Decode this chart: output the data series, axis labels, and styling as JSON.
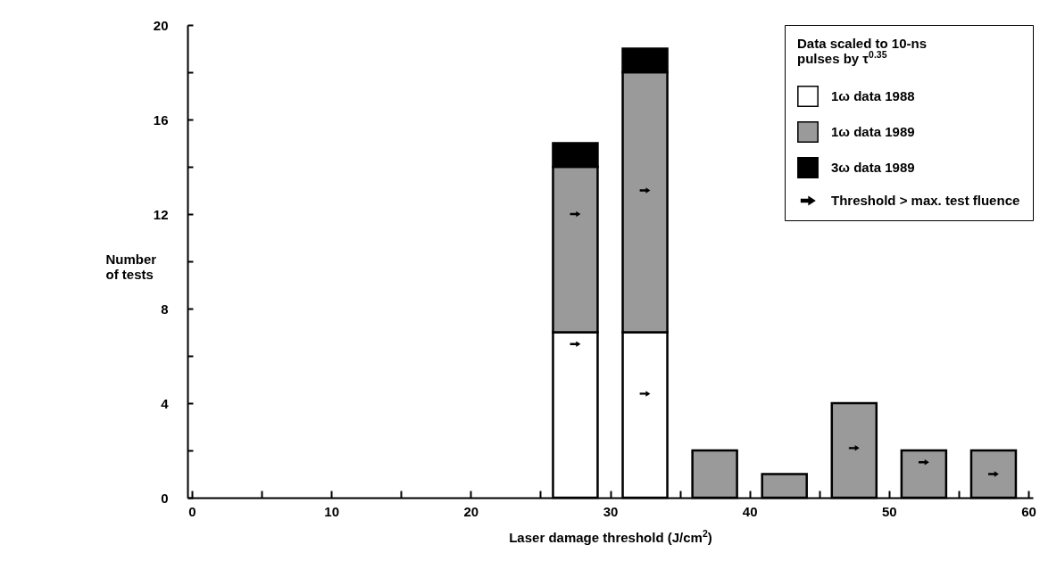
{
  "chart_data": {
    "type": "bar",
    "stacked": true,
    "xlabel": "Laser damage threshold (J/cm$^{2}$)",
    "ylabel": "Number of tests",
    "legend_title": "Data scaled to 10-ns pulses by τ$^{0.35}$",
    "x": [
      27.5,
      32.5,
      37.5,
      42.5,
      47.5,
      52.5,
      57.5
    ],
    "series": [
      {
        "name": "1ω data 1988",
        "color": "#ffffff",
        "values": [
          7,
          7,
          null,
          null,
          null,
          null,
          null
        ]
      },
      {
        "name": "1ω data 1989",
        "color": "#9a9a9a",
        "values": [
          7,
          11,
          2,
          1,
          4,
          2,
          2
        ]
      },
      {
        "name": "3ω data 1989",
        "color": "#000000",
        "values": [
          1,
          1,
          null,
          null,
          null,
          null,
          null
        ]
      },
      {
        "name": "Threshold > max. test fluence",
        "type": "scatter",
        "color": "#000000",
        "x": [
          27.5,
          27.5,
          32.5,
          32.5,
          47.5,
          52.5,
          57.5
        ],
        "values": [
          6.5,
          12,
          4.4,
          13,
          2.1,
          1.5,
          1
        ]
      }
    ],
    "xlim": [
      0,
      60
    ],
    "xticks": [
      0,
      {
        "value": 5,
        "label": null
      },
      10,
      {
        "value": 15,
        "label": null
      },
      20,
      {
        "value": 25,
        "label": null
      },
      30,
      {
        "value": 35,
        "label": null
      },
      40,
      {
        "value": 45,
        "label": null
      },
      50,
      {
        "value": 55,
        "label": null
      },
      60
    ],
    "ylim": [
      0,
      20
    ],
    "yticks": [
      0,
      {
        "value": 2,
        "label": null
      },
      4,
      {
        "value": 6,
        "label": null
      },
      8,
      {
        "value": 10,
        "label": null
      },
      12,
      {
        "value": 14,
        "label": null
      },
      16,
      {
        "value": 18,
        "label": null
      },
      20
    ],
    "grid": false,
    "legend": "top right"
  }
}
